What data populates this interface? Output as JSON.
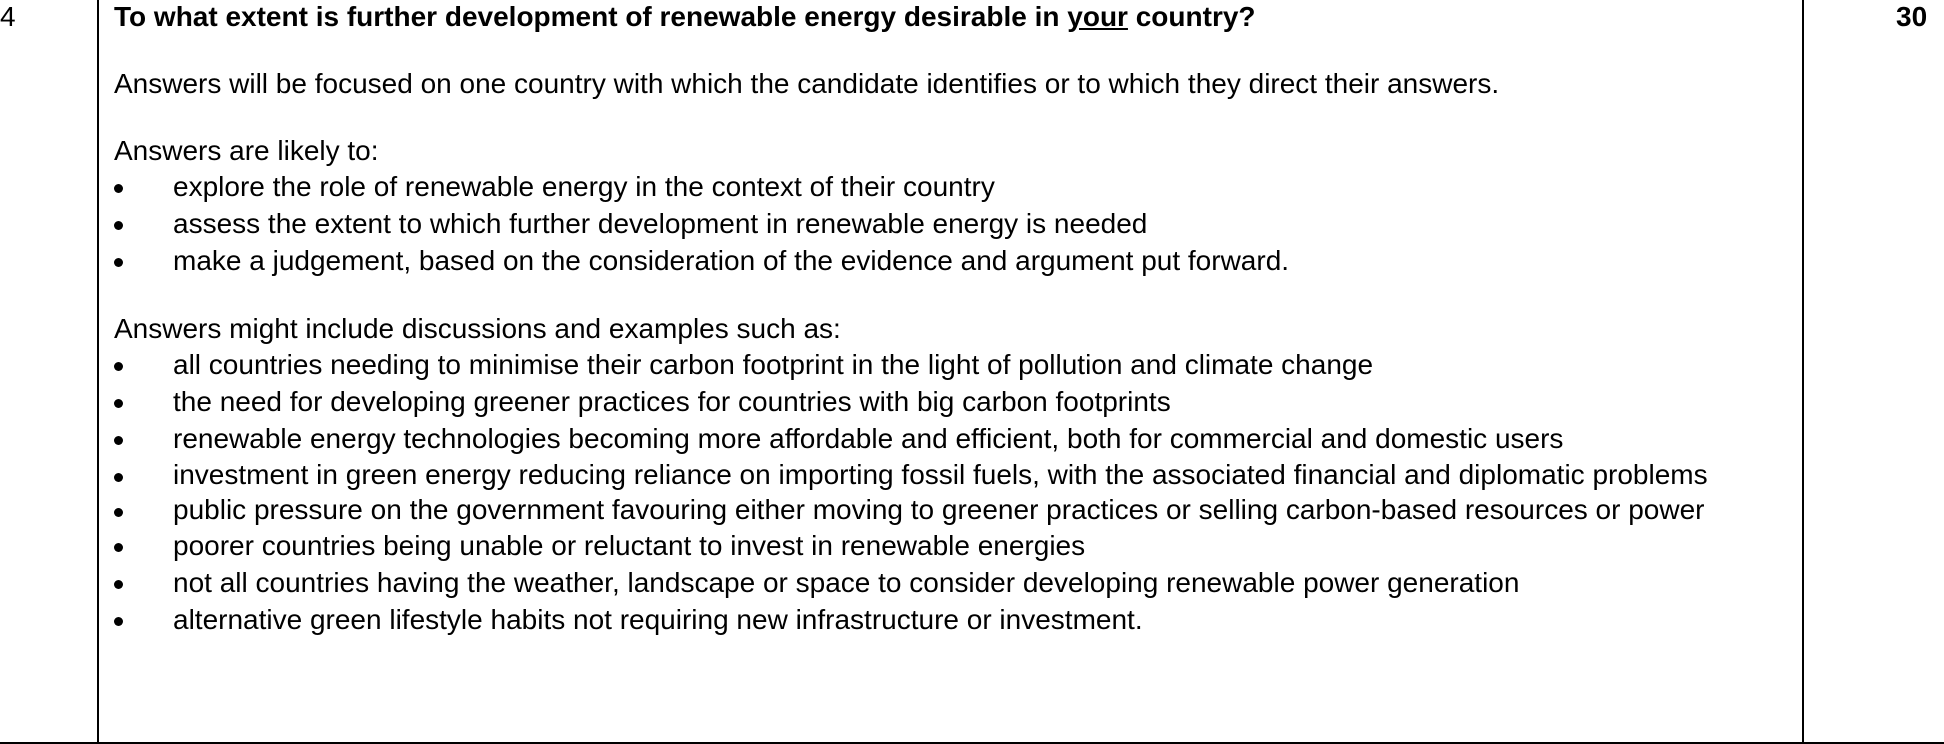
{
  "row": {
    "question_number": "4",
    "marks": "30",
    "question": {
      "before": "To what extent is further development of renewable energy desirable in ",
      "underlined": "your",
      "after": " country?"
    },
    "intro": "Answers will be focused on one country with which the candidate identifies or to which they direct their answers.",
    "likely_lead": "Answers are likely to:",
    "likely_items": [
      "explore the role of renewable energy in the context of their country",
      "assess the extent to which further development in renewable energy is needed",
      "make a judgement, based on the consideration of the evidence and argument put forward."
    ],
    "include_lead": "Answers might include discussions and examples such as:",
    "include_items": [
      "all countries needing to minimise their carbon footprint in the light of pollution and climate change",
      "the need for developing greener practices for countries with big carbon footprints",
      "renewable energy technologies becoming more affordable and efficient, both for commercial and domestic users",
      "investment in green energy reducing reliance on importing fossil fuels, with the associated financial and diplomatic problems",
      "public pressure on the government favouring either moving to greener practices or selling carbon-based resources or power",
      "poorer countries being unable or reluctant to invest in renewable energies",
      "not all countries having the weather, landscape or space to consider developing renewable power generation",
      "alternative green lifestyle habits not requiring new infrastructure or investment."
    ]
  }
}
